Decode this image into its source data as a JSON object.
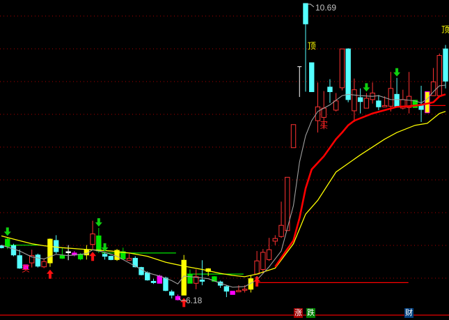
{
  "chart_data": {
    "type": "candlestick",
    "price_labels": {
      "high": "10.69",
      "low": "6.18"
    },
    "high_value": 10.69,
    "low_value": 6.18,
    "colors": {
      "r": "#ff3232",
      "c": "#54ffff",
      "y": "#ffff00",
      "g": "#00e600",
      "m": "#ff00ff",
      "w": "#ffffff",
      "ma_short": "#a0a0a0",
      "ma_mid": "#ff0000",
      "ma_long": "#ffff00",
      "grid": "#b00000"
    },
    "candles": [
      [
        7.01,
        7.02,
        6.97,
        6.98,
        "c"
      ],
      [
        7.0,
        7.14,
        6.96,
        7.11,
        "g"
      ],
      [
        7.01,
        7.04,
        6.85,
        6.87,
        "c"
      ],
      [
        6.86,
        6.95,
        6.66,
        6.67,
        "c"
      ],
      [
        6.72,
        6.72,
        6.65,
        6.65,
        "m"
      ],
      [
        6.75,
        6.95,
        6.68,
        6.86,
        "r"
      ],
      [
        6.87,
        6.89,
        6.68,
        6.7,
        "c"
      ],
      [
        6.69,
        6.81,
        6.67,
        6.77,
        "r"
      ],
      [
        6.75,
        7.12,
        6.69,
        7.11,
        "y"
      ],
      [
        7.09,
        7.17,
        6.89,
        6.92,
        "c"
      ],
      [
        6.86,
        6.98,
        6.81,
        6.82,
        "g"
      ],
      [
        6.92,
        7.02,
        6.79,
        6.91,
        "w"
      ],
      [
        6.9,
        6.93,
        6.85,
        6.87,
        "m"
      ],
      [
        6.88,
        6.9,
        6.79,
        6.81,
        "g"
      ],
      [
        6.87,
        7.02,
        6.8,
        6.95,
        "y"
      ],
      [
        7.03,
        7.39,
        6.96,
        7.19,
        "r"
      ],
      [
        7.16,
        7.28,
        6.9,
        6.93,
        "g"
      ],
      [
        6.88,
        6.9,
        6.8,
        6.85,
        "c"
      ],
      [
        6.85,
        6.86,
        6.79,
        6.8,
        "c"
      ],
      [
        6.8,
        6.96,
        6.78,
        6.94,
        "y"
      ],
      [
        6.92,
        6.98,
        6.81,
        6.81,
        "g"
      ],
      [
        6.79,
        6.89,
        6.78,
        6.82,
        "r"
      ],
      [
        6.82,
        6.85,
        6.68,
        6.69,
        "c"
      ],
      [
        6.68,
        6.69,
        6.56,
        6.57,
        "c"
      ],
      [
        6.6,
        6.62,
        6.48,
        6.49,
        "c"
      ],
      [
        6.47,
        6.51,
        6.43,
        6.45,
        "c"
      ],
      [
        6.55,
        6.57,
        6.44,
        6.44,
        "m"
      ],
      [
        6.52,
        6.54,
        6.32,
        6.33,
        "c"
      ],
      [
        6.31,
        6.34,
        6.21,
        6.26,
        "c"
      ],
      [
        6.24,
        6.27,
        6.18,
        6.19,
        "m"
      ],
      [
        6.26,
        6.87,
        6.26,
        6.79,
        "y"
      ],
      [
        6.58,
        6.65,
        6.44,
        6.44,
        "g"
      ],
      [
        6.44,
        6.65,
        6.35,
        6.54,
        "r"
      ],
      [
        6.49,
        6.79,
        6.41,
        6.47,
        "c"
      ],
      [
        6.62,
        6.67,
        6.55,
        6.66,
        "y"
      ],
      [
        6.54,
        6.55,
        6.47,
        6.47,
        "g"
      ],
      [
        6.46,
        6.48,
        6.37,
        6.41,
        "c"
      ],
      [
        6.39,
        6.41,
        6.23,
        6.32,
        "c"
      ],
      [
        6.32,
        6.32,
        6.27,
        6.27,
        "m"
      ],
      [
        6.31,
        6.41,
        6.31,
        6.33,
        "r"
      ],
      [
        6.34,
        6.41,
        6.3,
        6.35,
        "r"
      ],
      [
        6.35,
        6.56,
        6.3,
        6.51,
        "y"
      ],
      [
        6.58,
        6.93,
        6.57,
        6.78,
        "r"
      ],
      [
        6.65,
        6.96,
        6.59,
        6.91,
        "r"
      ],
      [
        6.8,
        7.13,
        6.78,
        6.95,
        "r"
      ],
      [
        7.08,
        7.17,
        7.02,
        7.12,
        "r"
      ],
      [
        7.15,
        7.68,
        7.13,
        7.32,
        "r"
      ],
      [
        7.24,
        8.05,
        7.24,
        8.05,
        "r"
      ],
      [
        8.5,
        8.85,
        8.5,
        8.85,
        "r"
      ],
      [
        9.27,
        9.73,
        9.27,
        9.73,
        "w"
      ],
      [
        10.69,
        10.69,
        9.35,
        10.38,
        "c"
      ],
      [
        9.79,
        9.79,
        9.35,
        9.35,
        "c"
      ],
      [
        8.91,
        9.49,
        8.73,
        9.12,
        "r"
      ],
      [
        8.96,
        9.36,
        8.78,
        9.1,
        "r"
      ],
      [
        9.42,
        9.54,
        9.18,
        9.35,
        "c"
      ],
      [
        9.07,
        9.33,
        9.05,
        9.21,
        "r"
      ],
      [
        9.41,
        10.0,
        9.37,
        10.0,
        "r"
      ],
      [
        10.0,
        10.01,
        9.19,
        9.23,
        "c"
      ],
      [
        9.06,
        9.55,
        8.89,
        9.38,
        "r"
      ],
      [
        9.26,
        9.4,
        9.02,
        9.2,
        "c"
      ],
      [
        9.1,
        9.33,
        9.1,
        9.25,
        "r"
      ],
      [
        9.23,
        9.49,
        9.17,
        9.33,
        "r"
      ],
      [
        9.21,
        9.3,
        9.07,
        9.12,
        "c"
      ],
      [
        9.12,
        9.28,
        9.12,
        9.14,
        "r"
      ],
      [
        9.13,
        9.65,
        9.05,
        9.4,
        "r"
      ],
      [
        9.31,
        9.56,
        9.12,
        9.13,
        "c"
      ],
      [
        9.1,
        9.38,
        9.08,
        9.23,
        "r"
      ],
      [
        9.11,
        9.65,
        9.02,
        9.28,
        "r"
      ],
      [
        9.22,
        9.22,
        9.11,
        9.11,
        "g"
      ],
      [
        9.15,
        9.44,
        8.89,
        9.08,
        "c"
      ],
      [
        9.03,
        9.35,
        9.03,
        9.35,
        "y"
      ],
      [
        9.29,
        9.71,
        9.29,
        9.5,
        "r"
      ],
      [
        9.29,
        9.93,
        9.29,
        9.9,
        "r"
      ],
      [
        10.0,
        10.06,
        9.4,
        9.51,
        "c"
      ]
    ],
    "ma_short": [
      [
        0,
        7.02
      ],
      [
        3,
        6.93
      ],
      [
        5,
        6.84
      ],
      [
        7,
        6.81
      ],
      [
        9,
        6.88
      ],
      [
        11,
        6.86
      ],
      [
        14,
        6.89
      ],
      [
        15,
        6.95
      ],
      [
        17,
        6.91
      ],
      [
        19,
        6.85
      ],
      [
        21,
        6.75
      ],
      [
        24,
        6.6
      ],
      [
        26,
        6.55
      ],
      [
        28,
        6.48
      ],
      [
        29,
        6.43
      ],
      [
        30,
        6.55
      ],
      [
        32,
        6.53
      ],
      [
        34,
        6.51
      ],
      [
        36,
        6.44
      ],
      [
        38,
        6.38
      ],
      [
        40,
        6.39
      ],
      [
        42,
        6.49
      ],
      [
        44,
        6.69
      ],
      [
        46,
        6.93
      ],
      [
        48,
        7.62
      ],
      [
        49,
        8.28
      ],
      [
        50,
        8.68
      ],
      [
        51,
        8.91
      ],
      [
        52,
        9.05
      ],
      [
        54,
        9.15
      ],
      [
        56,
        9.29
      ],
      [
        57,
        9.31
      ],
      [
        59,
        9.29
      ],
      [
        61,
        9.28
      ],
      [
        62,
        9.29
      ],
      [
        64,
        9.23
      ],
      [
        66,
        9.23
      ],
      [
        68,
        9.21
      ],
      [
        69,
        9.18
      ],
      [
        70,
        9.24
      ],
      [
        71,
        9.35
      ],
      [
        72,
        9.44
      ],
      [
        73,
        9.45
      ]
    ],
    "ma_mid": [
      [
        45,
        6.69
      ],
      [
        47,
        6.96
      ],
      [
        48,
        7.09
      ],
      [
        49,
        7.43
      ],
      [
        50,
        7.88
      ],
      [
        51,
        8.17
      ],
      [
        53,
        8.37
      ],
      [
        55,
        8.63
      ],
      [
        56,
        8.73
      ],
      [
        57,
        8.84
      ],
      [
        58,
        8.91
      ],
      [
        61,
        9.02
      ],
      [
        63,
        9.07
      ],
      [
        65,
        9.12
      ],
      [
        67,
        9.13
      ],
      [
        69,
        9.15
      ],
      [
        71,
        9.19
      ],
      [
        72,
        9.28
      ],
      [
        73,
        9.31
      ]
    ],
    "ma_long": [
      [
        0,
        7.16
      ],
      [
        2,
        7.11
      ],
      [
        5,
        7.04
      ],
      [
        7,
        7.01
      ],
      [
        10,
        6.98
      ],
      [
        13,
        6.96
      ],
      [
        18,
        6.93
      ],
      [
        21,
        6.9
      ],
      [
        24,
        6.85
      ],
      [
        27,
        6.76
      ],
      [
        30,
        6.7
      ],
      [
        33,
        6.65
      ],
      [
        36,
        6.59
      ],
      [
        38,
        6.56
      ],
      [
        40,
        6.54
      ],
      [
        42,
        6.58
      ],
      [
        45,
        6.67
      ],
      [
        48,
        7.04
      ],
      [
        50,
        7.49
      ],
      [
        52,
        7.7
      ],
      [
        55,
        8.13
      ],
      [
        59,
        8.39
      ],
      [
        63,
        8.63
      ],
      [
        65,
        8.73
      ],
      [
        68,
        8.84
      ],
      [
        70,
        8.87
      ],
      [
        72,
        9.02
      ],
      [
        73,
        9.05
      ]
    ],
    "level_lines": [
      {
        "from": 1,
        "to": 6.5,
        "price": 7.02,
        "color": "#00e600"
      },
      {
        "from": 16.5,
        "to": 28.7,
        "price": 6.9,
        "color": "#00e600"
      },
      {
        "from": 30.5,
        "to": 39.8,
        "price": 6.58,
        "color": "#00e600"
      },
      {
        "from": 41.9,
        "to": 66.9,
        "price": 6.45,
        "color": "#ff0000"
      },
      {
        "from": 70,
        "to": 73,
        "price": 9.14,
        "color": "#ff0000"
      }
    ],
    "buy_arrows": [
      8,
      15,
      30,
      42
    ],
    "sell_arrows": [
      1,
      16,
      17,
      60,
      65
    ],
    "labels": [
      {
        "text": "买",
        "index": 4,
        "price": 6.62,
        "color": "#ff2020"
      },
      {
        "text": "买",
        "index": 53,
        "price": 8.8,
        "color": "#ff2020"
      },
      {
        "text": "顶",
        "index": 51,
        "price": 10.0,
        "color": "#ffff00"
      },
      {
        "text": "顶",
        "index": 73,
        "price": 10.25,
        "color": "#ffff00"
      }
    ],
    "diamond": {
      "index": 42,
      "price": 6.52
    }
  },
  "buttons": {
    "up": "涨",
    "down": "跌",
    "finance": "财"
  },
  "button_colors": {
    "up": "#a00000",
    "down": "#008000",
    "finance": "#004080"
  }
}
